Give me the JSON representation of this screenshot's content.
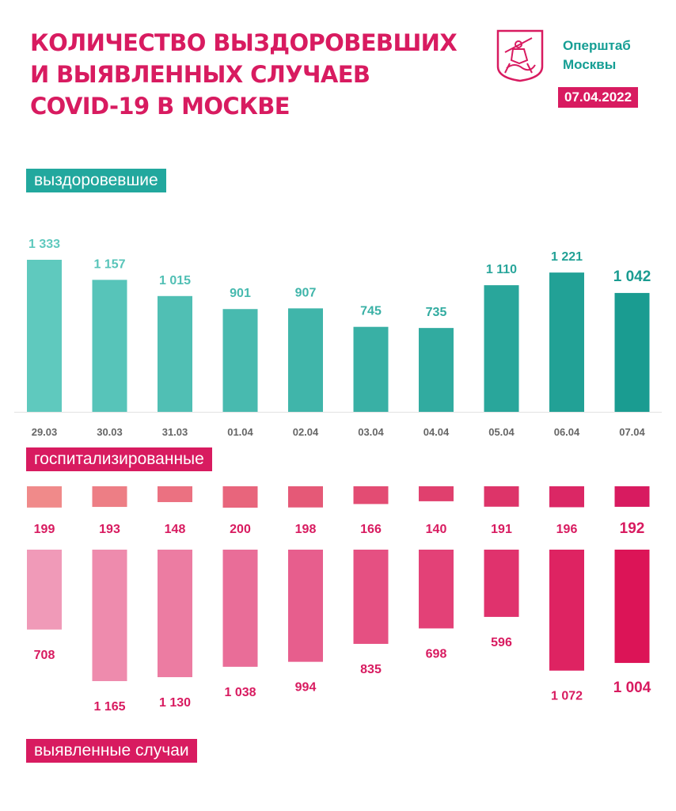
{
  "header": {
    "title_lines": [
      "КОЛИЧЕСТВО ВЫЗДОРОВЕВШИХ",
      "И ВЫЯВЛЕННЫХ СЛУЧАЕВ",
      "COVID-19 В МОСКВЕ"
    ],
    "brand_lines": [
      "Оперштаб",
      "Москвы"
    ],
    "date": "07.04.2022",
    "logo_icon": "moscow-coat-of-arms-icon"
  },
  "sections": {
    "recovered": "выздоровевшие",
    "hospitalized": "госпитализированные",
    "cases": "выявленные случаи"
  },
  "colors": {
    "title": "#d81b60",
    "teal_light": "#5fc9be",
    "teal_dark": "#1a9c91",
    "pink_light": "#f08a8a",
    "pink_dark": "#d81b60",
    "cases_light": "#f09ab8",
    "cases_dark": "#dc1457"
  },
  "chart_data": [
    {
      "type": "bar",
      "categories": [
        "29.03",
        "30.03",
        "31.03",
        "01.04",
        "02.04",
        "03.04",
        "04.04",
        "05.04",
        "06.04",
        "07.04"
      ],
      "series": [
        {
          "name": "выздоровевшие",
          "values": [
            1333,
            1157,
            1015,
            901,
            907,
            745,
            735,
            1110,
            1221,
            1042
          ]
        }
      ],
      "value_labels": [
        "1 333",
        "1 157",
        "1 015",
        "901",
        "907",
        "745",
        "735",
        "1 110",
        "1 221",
        "1 042"
      ]
    },
    {
      "type": "bar",
      "categories": [
        "29.03",
        "30.03",
        "31.03",
        "01.04",
        "02.04",
        "03.04",
        "04.04",
        "05.04",
        "06.04",
        "07.04"
      ],
      "series": [
        {
          "name": "госпитализированные",
          "values": [
            199,
            193,
            148,
            200,
            198,
            166,
            140,
            191,
            196,
            192
          ]
        }
      ],
      "value_labels": [
        "199",
        "193",
        "148",
        "200",
        "198",
        "166",
        "140",
        "191",
        "196",
        "192"
      ]
    },
    {
      "type": "bar",
      "categories": [
        "29.03",
        "30.03",
        "31.03",
        "01.04",
        "02.04",
        "03.04",
        "04.04",
        "05.04",
        "06.04",
        "07.04"
      ],
      "series": [
        {
          "name": "выявленные случаи",
          "values": [
            708,
            1165,
            1130,
            1038,
            994,
            835,
            698,
            596,
            1072,
            1004
          ]
        }
      ],
      "value_labels": [
        "708",
        "1 165",
        "1 130",
        "1 038",
        "994",
        "835",
        "698",
        "596",
        "1 072",
        "1 004"
      ]
    }
  ]
}
